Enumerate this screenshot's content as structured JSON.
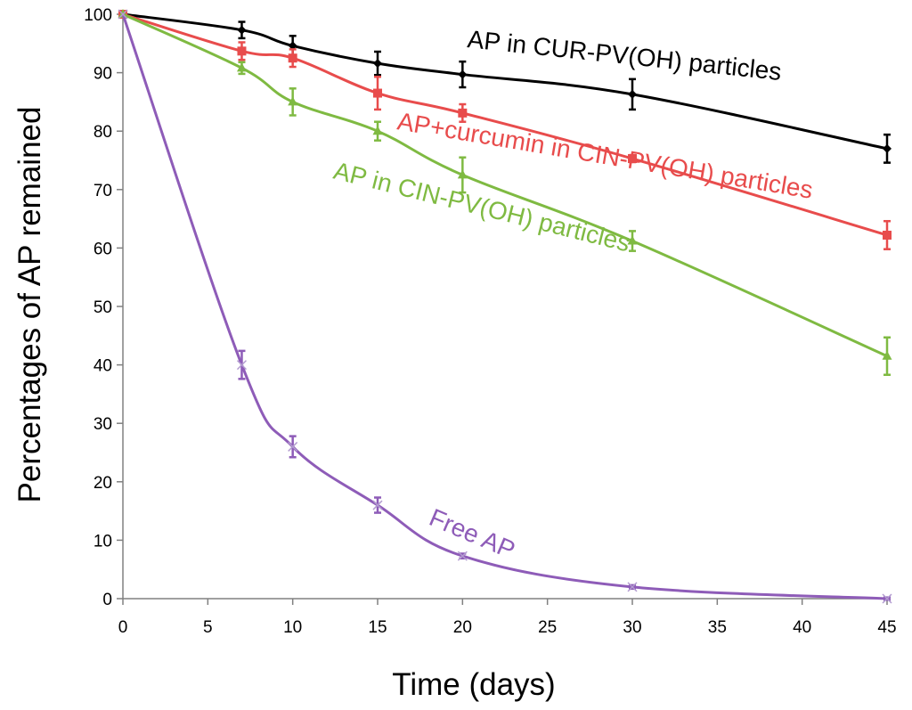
{
  "chart_data": {
    "type": "line",
    "title": "",
    "xlabel": "Time (days)",
    "ylabel": "Percentages of AP remained",
    "xlim": [
      0,
      45
    ],
    "ylim": [
      0,
      100
    ],
    "x_ticks": [
      0,
      5,
      10,
      15,
      20,
      25,
      30,
      35,
      40,
      45
    ],
    "y_ticks": [
      0,
      10,
      20,
      30,
      40,
      50,
      60,
      70,
      80,
      90,
      100
    ],
    "grid": false,
    "legend": "inline labels",
    "series": [
      {
        "name": "AP in CUR-PV(OH) particles",
        "color": "#000000",
        "marker": "diamond",
        "x": [
          0,
          7,
          10,
          15,
          20,
          30,
          45
        ],
        "values": [
          100,
          97.3,
          94.6,
          91.6,
          89.7,
          86.3,
          77.0
        ],
        "errors": [
          0,
          1.4,
          1.7,
          2.0,
          2.2,
          2.6,
          2.4
        ]
      },
      {
        "name": "AP+curcumin in CIN-PV(OH) particles",
        "color": "#e84c4c",
        "marker": "square",
        "x": [
          0,
          7,
          10,
          15,
          20,
          30,
          45
        ],
        "values": [
          100,
          93.7,
          92.5,
          86.5,
          83.1,
          75.3,
          62.2
        ],
        "errors": [
          0,
          1.5,
          1.5,
          2.8,
          1.5,
          0.6,
          2.4
        ]
      },
      {
        "name": "AP in CIN-PV(OH) particles",
        "color": "#7fba42",
        "marker": "triangle",
        "x": [
          0,
          7,
          10,
          15,
          20,
          30,
          45
        ],
        "values": [
          100,
          90.8,
          85.0,
          80.0,
          72.5,
          61.2,
          41.5
        ],
        "errors": [
          0,
          1.0,
          2.3,
          1.6,
          3.0,
          1.7,
          3.2
        ]
      },
      {
        "name": "Free AP",
        "color": "#8e5cb8",
        "marker": "x",
        "x": [
          0,
          7,
          10,
          15,
          20,
          30,
          45
        ],
        "values": [
          100,
          40.0,
          26.0,
          16.0,
          7.3,
          2.0,
          0.0
        ],
        "errors": [
          0,
          2.4,
          1.8,
          1.3,
          0.4,
          0.3,
          0.2
        ]
      }
    ]
  }
}
